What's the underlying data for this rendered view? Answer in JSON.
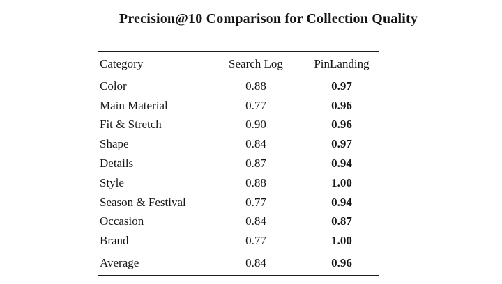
{
  "title": "Precision@10 Comparison for Collection Quality",
  "colors": {
    "background": "#ffffff",
    "text": "#161616",
    "rule": "#1c1c1c"
  },
  "table": {
    "columns": [
      "Category",
      "Search Log",
      "PinLanding"
    ],
    "rows": [
      [
        "Color",
        "0.88",
        "0.97"
      ],
      [
        "Main Material",
        "0.77",
        "0.96"
      ],
      [
        "Fit & Stretch",
        "0.90",
        "0.96"
      ],
      [
        "Shape",
        "0.84",
        "0.97"
      ],
      [
        "Details",
        "0.87",
        "0.94"
      ],
      [
        "Style",
        "0.88",
        "1.00"
      ],
      [
        "Season & Festival",
        "0.77",
        "0.94"
      ],
      [
        "Occasion",
        "0.84",
        "0.87"
      ],
      [
        "Brand",
        "0.77",
        "1.00"
      ]
    ],
    "average_row": [
      "Average",
      "0.84",
      "0.96"
    ]
  }
}
